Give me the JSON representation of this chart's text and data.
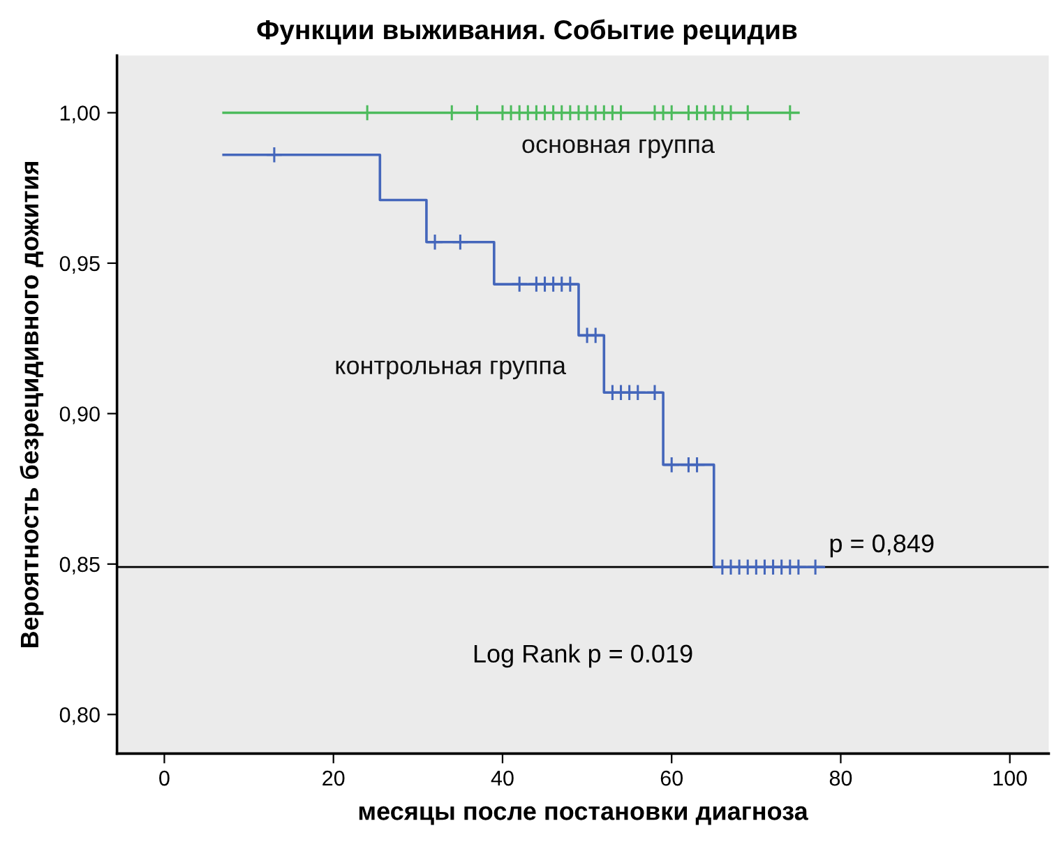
{
  "chart_data": {
    "type": "step",
    "title": "Функции выживания. Событие рецидив",
    "xlabel": "месяцы после постановки диагноза",
    "ylabel": "Вероятность безрецидивного дожития",
    "xlim": [
      -5.6,
      104.6
    ],
    "xticks": [
      0,
      20,
      40,
      60,
      80,
      100
    ],
    "ylim": [
      0.787,
      1.019
    ],
    "yticks": [
      {
        "value": 0.8,
        "label": "0,80"
      },
      {
        "value": 0.85,
        "label": "0,85"
      },
      {
        "value": 0.9,
        "label": "0,90"
      },
      {
        "value": 0.95,
        "label": "0,95"
      },
      {
        "value": 1.0,
        "label": "1,00"
      }
    ],
    "grid": false,
    "legend": false,
    "series": [
      {
        "name": "основная группа",
        "color": "#4cbb5c",
        "x": [
          7,
          75
        ],
        "values": [
          1.0,
          1.0
        ]
      },
      {
        "type": "scatter",
        "marker": "cross",
        "color": "#4cbb5c",
        "x": [
          24,
          34,
          37,
          40,
          41,
          42,
          43,
          44,
          45,
          46,
          47,
          48,
          49,
          50,
          51,
          52,
          53,
          54,
          58,
          59,
          60,
          62,
          63,
          64,
          65,
          66,
          67,
          69,
          74
        ],
        "values": [
          1.0,
          1.0,
          1.0,
          1.0,
          1.0,
          1.0,
          1.0,
          1.0,
          1.0,
          1.0,
          1.0,
          1.0,
          1.0,
          1.0,
          1.0,
          1.0,
          1.0,
          1.0,
          1.0,
          1.0,
          1.0,
          1.0,
          1.0,
          1.0,
          1.0,
          1.0,
          1.0,
          1.0,
          1.0
        ]
      },
      {
        "name": "контрольная группа",
        "color": "#4466bb",
        "x": [
          7,
          25.5,
          31,
          39,
          49,
          52,
          59,
          65,
          78
        ],
        "values": [
          0.986,
          0.971,
          0.957,
          0.943,
          0.926,
          0.907,
          0.883,
          0.849,
          0.849
        ]
      },
      {
        "type": "scatter",
        "marker": "cross",
        "color": "#4466bb",
        "x": [
          13,
          32,
          35,
          42,
          44,
          45,
          46,
          47,
          48,
          50,
          51,
          53,
          54,
          55,
          56,
          58,
          60,
          62,
          63,
          66,
          67,
          68,
          69,
          70,
          71,
          72,
          73,
          74,
          75,
          77
        ],
        "values": [
          0.986,
          0.957,
          0.957,
          0.943,
          0.943,
          0.943,
          0.943,
          0.943,
          0.943,
          0.926,
          0.926,
          0.907,
          0.907,
          0.907,
          0.907,
          0.907,
          0.883,
          0.883,
          0.883,
          0.849,
          0.849,
          0.849,
          0.849,
          0.849,
          0.849,
          0.849,
          0.849,
          0.849,
          0.849,
          0.849
        ]
      }
    ],
    "ref_lines": [
      {
        "axis": "y",
        "value": 0.849,
        "label": "p = 0,849",
        "color": "#000000"
      }
    ],
    "annotations": [
      "Log Rank p = 0.019"
    ]
  }
}
